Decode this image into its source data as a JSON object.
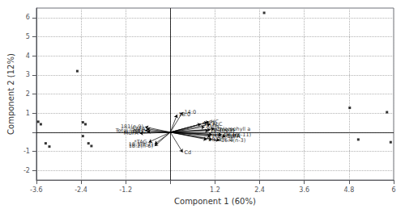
{
  "chart_data": {
    "type": "biplot",
    "xlabel": "Component 1 (60%)",
    "ylabel": "Component 2 (12%)",
    "xlim": [
      -3.6,
      6.0
    ],
    "ylim": [
      -2.5,
      6.5
    ],
    "xticks": [
      -3.6,
      -2.4,
      -1.2,
      {
        "value": 0,
        "label": null
      },
      1.2,
      2.4,
      3.6,
      4.8,
      6
    ],
    "yticks": [
      -2,
      -1,
      {
        "value": 0,
        "label": null
      },
      1,
      2,
      3,
      4,
      5,
      6
    ],
    "grid": true,
    "vectors": {
      "color": "#000000",
      "labels": [
        "HC",
        "PL",
        "ST",
        "ALC",
        "AMPL",
        "Chlorophyll a",
        "Nitrogen",
        "18:4(n-3)",
        "18:3(n-6)",
        "16:1(n-11)",
        "PUFA/SAFA",
        "PUFA",
        "18:3(n-3)",
        "ω3",
        "16:4(n-3)",
        "14:0",
        "18:0",
        "181(n-9)",
        "SAFA",
        "Total lipids",
        "16:0",
        "MUFA",
        "*TAG",
        "18:1(n-7)",
        "18:2(n-6)",
        "Cd"
      ],
      "x": [
        1.05,
        1.0,
        0.82,
        1.08,
        0.92,
        1.18,
        1.08,
        1.02,
        1.12,
        1.38,
        1.08,
        1.48,
        0.98,
        1.12,
        1.32,
        0.33,
        0.18,
        -0.68,
        -0.63,
        -0.68,
        -0.62,
        -0.82,
        -0.58,
        -0.42,
        -0.42,
        0.33
      ],
      "y": [
        0.55,
        0.52,
        0.43,
        0.43,
        0.28,
        0.18,
        0.13,
        0.08,
        -0.12,
        -0.12,
        -0.22,
        -0.22,
        -0.38,
        -0.38,
        -0.42,
        1.05,
        0.92,
        0.28,
        0.18,
        0.1,
        0.04,
        -0.06,
        -0.52,
        -0.62,
        -0.72,
        -1.05
      ]
    },
    "points": {
      "color": "#000000",
      "marker": "square",
      "x": [
        -3.55,
        -3.48,
        -3.35,
        -3.25,
        -2.5,
        -2.35,
        -2.28,
        -2.2,
        -2.12,
        -2.35,
        4.82,
        5.82,
        5.05,
        5.92,
        2.52
      ],
      "y": [
        0.55,
        0.42,
        -0.58,
        -0.75,
        3.2,
        0.52,
        0.42,
        -0.58,
        -0.72,
        -0.2,
        1.28,
        1.05,
        -0.38,
        -0.52,
        6.25
      ]
    }
  }
}
